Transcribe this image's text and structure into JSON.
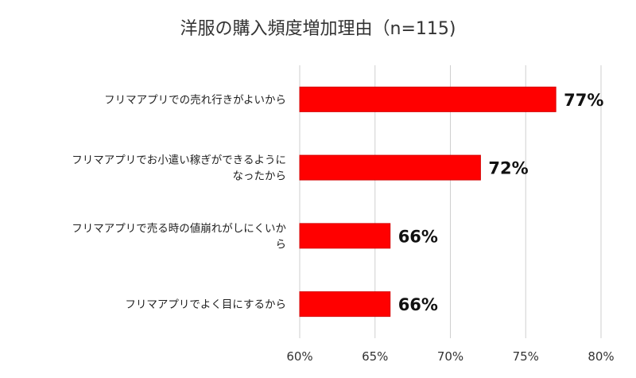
{
  "chart_data": {
    "type": "bar",
    "orientation": "horizontal",
    "title": "洋服の購入頻度増加理由（n=115)",
    "categories": [
      [
        "フリマアプリでの売れ行きがよいから"
      ],
      [
        "フリマアプリでお小遣い稼ぎができるように",
        "なったから"
      ],
      [
        "フリマアプリで売る時の値崩れがしにくいか",
        "ら"
      ],
      [
        "フリマアプリでよく目にするから"
      ]
    ],
    "values": [
      77,
      72,
      66,
      66
    ],
    "data_labels": [
      "77%",
      "72%",
      "66%",
      "66%"
    ],
    "xlim": [
      60,
      80
    ],
    "x_ticks": [
      60,
      65,
      70,
      75,
      80
    ],
    "x_tick_labels": [
      "60%",
      "65%",
      "70%",
      "75%",
      "80%"
    ],
    "grid": "vertical",
    "bar_color": "#ff0000"
  }
}
